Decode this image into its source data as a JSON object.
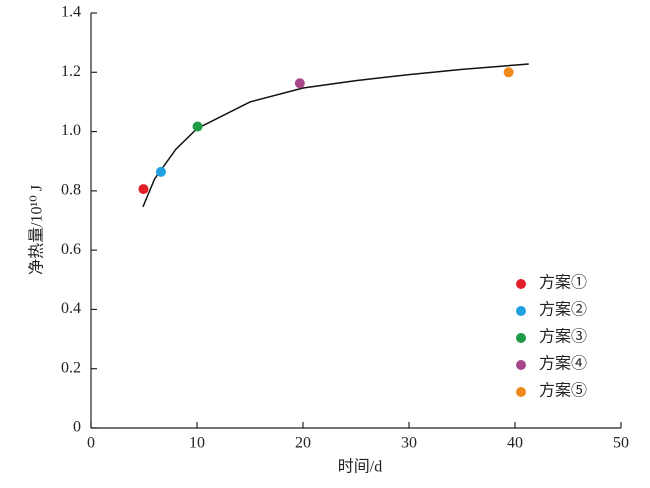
{
  "chart_data": {
    "type": "scatter",
    "x_label": "时间/d",
    "y_label": "净热量/10¹⁰ J",
    "xlim": [
      0,
      50
    ],
    "xticks": [
      0,
      10,
      20,
      30,
      40,
      50
    ],
    "ylim": [
      0,
      1.4
    ],
    "yticks": [
      0,
      0.2,
      0.4,
      0.6,
      0.8,
      {
        "value": 1,
        "label": "1.0"
      },
      1.2,
      1.4
    ],
    "series": [
      {
        "name": "方案①",
        "color": "#e3202a",
        "x": [
          4.95
        ],
        "values": [
          0.806
        ]
      },
      {
        "name": "方案②",
        "color": "#1fa0e0",
        "x": [
          6.6
        ],
        "values": [
          0.864
        ]
      },
      {
        "name": "方案③",
        "color": "#1f9a45",
        "x": [
          10.05
        ],
        "values": [
          1.017
        ]
      },
      {
        "name": "方案④",
        "color": "#a5478a",
        "x": [
          19.7
        ],
        "values": [
          1.163
        ]
      },
      {
        "name": "方案⑤",
        "color": "#f08a1c",
        "x": [
          39.4
        ],
        "values": [
          1.2
        ]
      }
    ],
    "curve": {
      "color": "#111",
      "x": [
        4.9,
        6,
        8,
        10,
        15,
        20,
        25,
        30,
        35,
        41.3
      ],
      "values": [
        0.746,
        0.84,
        0.94,
        1.01,
        1.1,
        1.147,
        1.172,
        1.192,
        1.21,
        1.228
      ]
    },
    "legend": "lower right"
  }
}
